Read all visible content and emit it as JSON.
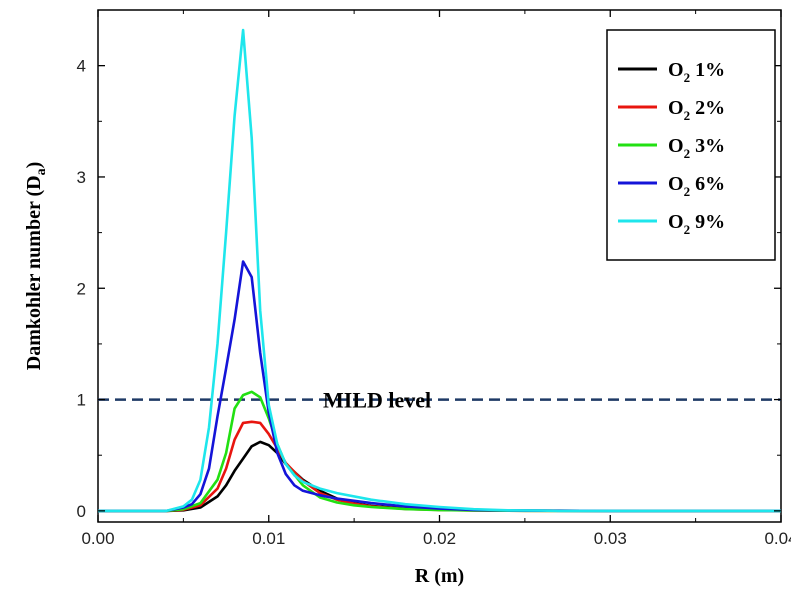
{
  "chart_data": {
    "type": "line",
    "xlabel": "R (m)",
    "ylabel_main": "Damkohler number (D",
    "ylabel_sub": "a",
    "ylabel_close": ")",
    "xlim": [
      0,
      0.04
    ],
    "ylim": [
      -0.1,
      4.5
    ],
    "xticks": [
      0.0,
      0.01,
      0.02,
      0.03,
      0.04
    ],
    "xtick_labels": [
      "0.00",
      "0.01",
      "0.02",
      "0.03",
      "0.04"
    ],
    "yticks": [
      0,
      1,
      2,
      3,
      4
    ],
    "ytick_labels": [
      "0",
      "1",
      "2",
      "3",
      "4"
    ],
    "grid": false,
    "legend_position": "top-right",
    "reference_line": {
      "y": 1.0,
      "label": "MILD level",
      "color": "#1f3a66",
      "style": "dashed"
    },
    "series": [
      {
        "name_main": "O",
        "name_sub": "2",
        "name_rest": " 1%",
        "color": "#000000",
        "x": [
          0,
          0.004,
          0.005,
          0.006,
          0.007,
          0.0075,
          0.008,
          0.0085,
          0.009,
          0.0095,
          0.01,
          0.0105,
          0.011,
          0.012,
          0.013,
          0.014,
          0.015,
          0.016,
          0.018,
          0.02,
          0.022,
          0.025,
          0.03,
          0.04
        ],
        "y": [
          0,
          0,
          0.005,
          0.03,
          0.13,
          0.23,
          0.36,
          0.47,
          0.58,
          0.62,
          0.59,
          0.52,
          0.42,
          0.28,
          0.18,
          0.11,
          0.07,
          0.045,
          0.02,
          0.01,
          0.005,
          0.002,
          0,
          0
        ]
      },
      {
        "name_main": "O",
        "name_sub": "2",
        "name_rest": " 2%",
        "color": "#e8150f",
        "x": [
          0,
          0.004,
          0.005,
          0.006,
          0.007,
          0.0075,
          0.008,
          0.0085,
          0.009,
          0.0095,
          0.01,
          0.0105,
          0.011,
          0.012,
          0.013,
          0.014,
          0.015,
          0.016,
          0.018,
          0.02,
          0.022,
          0.025,
          0.03,
          0.04
        ],
        "y": [
          0,
          0,
          0.01,
          0.05,
          0.2,
          0.38,
          0.64,
          0.79,
          0.8,
          0.79,
          0.69,
          0.56,
          0.43,
          0.27,
          0.16,
          0.1,
          0.065,
          0.04,
          0.018,
          0.008,
          0.004,
          0.001,
          0,
          0
        ]
      },
      {
        "name_main": "O",
        "name_sub": "2",
        "name_rest": " 3%",
        "color": "#22e012",
        "x": [
          0,
          0.004,
          0.005,
          0.006,
          0.007,
          0.0075,
          0.008,
          0.0085,
          0.009,
          0.0095,
          0.01,
          0.0105,
          0.011,
          0.012,
          0.013,
          0.014,
          0.015,
          0.016,
          0.018,
          0.02,
          0.022,
          0.025,
          0.03,
          0.04
        ],
        "y": [
          0,
          0,
          0.015,
          0.07,
          0.28,
          0.52,
          0.92,
          1.04,
          1.07,
          1.02,
          0.83,
          0.6,
          0.42,
          0.23,
          0.12,
          0.075,
          0.05,
          0.035,
          0.016,
          0.007,
          0.003,
          0.001,
          0,
          0
        ]
      },
      {
        "name_main": "O",
        "name_sub": "2",
        "name_rest": " 6%",
        "color": "#1414d8",
        "x": [
          0,
          0.004,
          0.005,
          0.0055,
          0.006,
          0.0065,
          0.007,
          0.0075,
          0.008,
          0.0085,
          0.009,
          0.0095,
          0.01,
          0.0105,
          0.011,
          0.0115,
          0.012,
          0.013,
          0.014,
          0.016,
          0.018,
          0.02,
          0.022,
          0.025,
          0.03,
          0.04
        ],
        "y": [
          0,
          0,
          0.03,
          0.06,
          0.15,
          0.38,
          0.85,
          1.28,
          1.72,
          2.24,
          2.1,
          1.42,
          0.88,
          0.52,
          0.33,
          0.23,
          0.18,
          0.14,
          0.11,
          0.07,
          0.04,
          0.02,
          0.008,
          0.002,
          0,
          0
        ]
      },
      {
        "name_main": "O",
        "name_sub": "2",
        "name_rest": " 9%",
        "color": "#1ee6ec",
        "x": [
          0,
          0.004,
          0.005,
          0.0055,
          0.006,
          0.0065,
          0.007,
          0.0075,
          0.008,
          0.0085,
          0.009,
          0.0095,
          0.01,
          0.0105,
          0.011,
          0.0115,
          0.012,
          0.013,
          0.014,
          0.016,
          0.018,
          0.02,
          0.022,
          0.024,
          0.026,
          0.027,
          0.04
        ],
        "y": [
          0,
          0,
          0.04,
          0.1,
          0.28,
          0.75,
          1.5,
          2.5,
          3.55,
          4.32,
          3.35,
          1.8,
          0.95,
          0.6,
          0.42,
          0.32,
          0.26,
          0.2,
          0.16,
          0.1,
          0.06,
          0.035,
          0.015,
          0.005,
          0.002,
          0,
          0
        ]
      }
    ]
  }
}
